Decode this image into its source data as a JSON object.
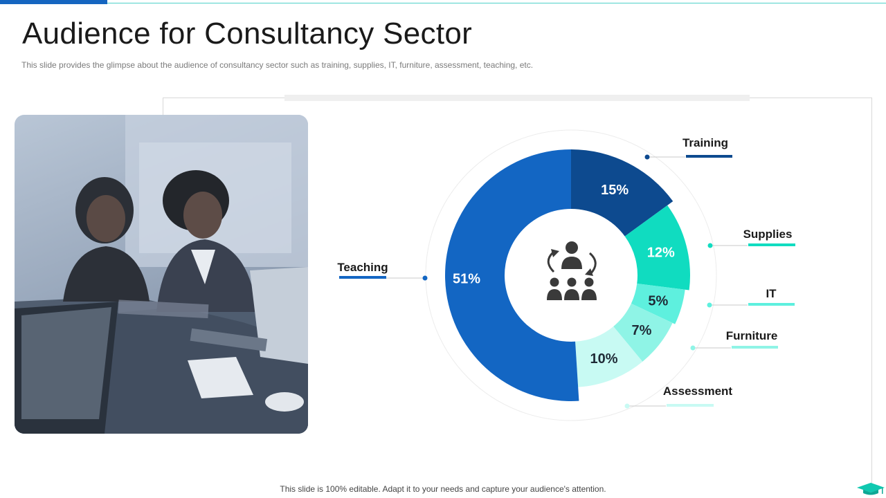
{
  "header": {
    "title": "Audience for Consultancy Sector",
    "subtitle": "This slide provides the glimpse about the audience of consultancy sector such as training, supplies, IT, furniture, assessment, teaching, etc."
  },
  "footer": {
    "note": "This slide is 100% editable. Adapt it to your needs and capture your audience's attention."
  },
  "photo": {
    "icon": "meeting-photo"
  },
  "center_icon": "team-cycle-icon",
  "chart_data": {
    "type": "pie",
    "style": "donut",
    "categories": [
      "Training",
      "Supplies",
      "IT",
      "Furniture",
      "Assessment",
      "Teaching"
    ],
    "values": [
      15,
      12,
      5,
      7,
      10,
      51
    ],
    "value_labels": [
      "15%",
      "12%",
      "5%",
      "7%",
      "10%",
      "51%"
    ],
    "colors": [
      "#0d4a8f",
      "#10dcc0",
      "#5ef0de",
      "#8ff4e6",
      "#c8faf3",
      "#1366c3"
    ],
    "legend": "callouts around chart"
  }
}
